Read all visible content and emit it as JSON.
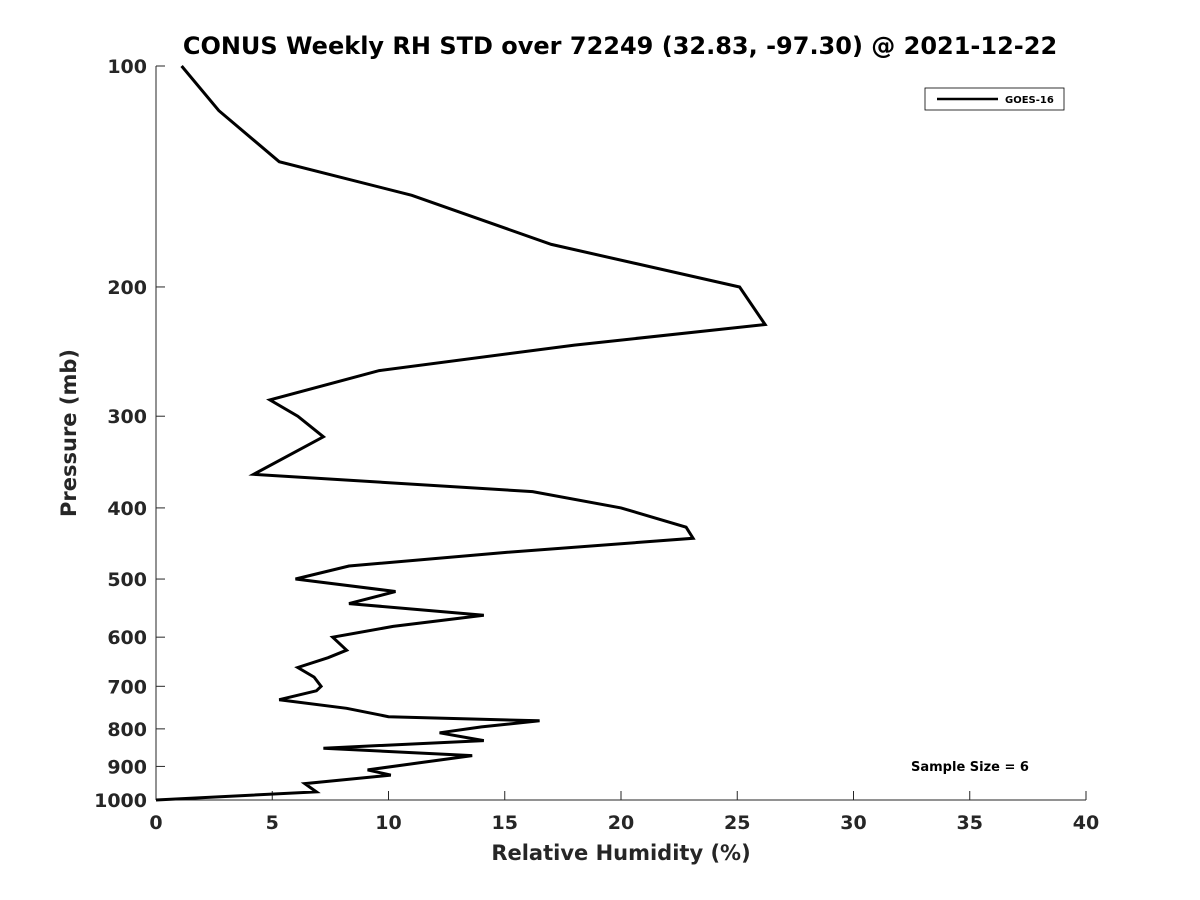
{
  "chart_data": {
    "type": "line",
    "title": "CONUS Weekly RH STD over 72249 (32.83, -97.30) @ 2021-12-22",
    "xlabel": "Relative Humidity (%)",
    "ylabel": "Pressure (mb)",
    "xlim": [
      0,
      40
    ],
    "ylim": [
      100,
      1000
    ],
    "y_scale": "log",
    "y_reversed": true,
    "grid": false,
    "x_ticks": [
      "0",
      "5",
      "10",
      "15",
      "20",
      "25",
      "30",
      "35",
      "40"
    ],
    "y_ticks": [
      "100",
      "200",
      "300",
      "400",
      "500",
      "600",
      "700",
      "800",
      "900",
      "1000"
    ],
    "legend_position": "top-right",
    "annotation": "Sample Size = 6",
    "series": [
      {
        "name": "GOES-16",
        "color": "#000000",
        "points": [
          [
            1000,
            0.0
          ],
          [
            975,
            6.9
          ],
          [
            950,
            6.4
          ],
          [
            925,
            10.1
          ],
          [
            910,
            9.1
          ],
          [
            890,
            11.3
          ],
          [
            870,
            13.6
          ],
          [
            850,
            7.2
          ],
          [
            830,
            14.1
          ],
          [
            810,
            12.2
          ],
          [
            795,
            14.0
          ],
          [
            780,
            16.5
          ],
          [
            770,
            10.0
          ],
          [
            750,
            8.2
          ],
          [
            730,
            5.3
          ],
          [
            710,
            6.9
          ],
          [
            700,
            7.1
          ],
          [
            680,
            6.8
          ],
          [
            660,
            6.1
          ],
          [
            640,
            7.4
          ],
          [
            625,
            8.2
          ],
          [
            600,
            7.6
          ],
          [
            580,
            10.2
          ],
          [
            560,
            14.1
          ],
          [
            540,
            8.3
          ],
          [
            520,
            10.3
          ],
          [
            500,
            6.0
          ],
          [
            480,
            8.3
          ],
          [
            460,
            15.0
          ],
          [
            440,
            23.1
          ],
          [
            425,
            22.8
          ],
          [
            400,
            20.0
          ],
          [
            380,
            16.2
          ],
          [
            360,
            4.2
          ],
          [
            320,
            7.2
          ],
          [
            300,
            6.1
          ],
          [
            285,
            4.9
          ],
          [
            260,
            9.6
          ],
          [
            240,
            18.0
          ],
          [
            225,
            26.2
          ],
          [
            200,
            25.1
          ],
          [
            175,
            17.0
          ],
          [
            150,
            11.0
          ],
          [
            135,
            5.3
          ],
          [
            115,
            2.7
          ],
          [
            100,
            1.1
          ]
        ]
      }
    ]
  }
}
